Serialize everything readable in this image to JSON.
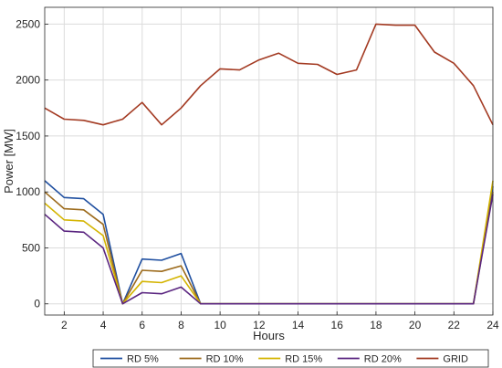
{
  "chart_data": {
    "type": "line",
    "title": "",
    "xlabel": "Hours",
    "ylabel": "Power [MW]",
    "xlim": [
      1,
      24
    ],
    "ylim": [
      -100,
      2650
    ],
    "xticks": [
      2,
      4,
      6,
      8,
      10,
      12,
      14,
      16,
      18,
      20,
      22,
      24
    ],
    "yticks": [
      0,
      500,
      1000,
      1500,
      2000,
      2500
    ],
    "grid": true,
    "legend_position": "bottom-outside",
    "x": [
      1,
      2,
      3,
      4,
      5,
      6,
      7,
      8,
      9,
      10,
      11,
      12,
      13,
      14,
      15,
      16,
      17,
      18,
      19,
      20,
      21,
      22,
      23,
      24
    ],
    "series": [
      {
        "name": "RD 5%",
        "color": "#1f4fa0",
        "values": [
          1100,
          950,
          940,
          800,
          0,
          400,
          390,
          450,
          0,
          0,
          0,
          0,
          0,
          0,
          0,
          0,
          0,
          0,
          0,
          0,
          0,
          0,
          0,
          1050
        ]
      },
      {
        "name": "RD 10%",
        "color": "#9c6a1b",
        "values": [
          1000,
          850,
          840,
          710,
          0,
          300,
          290,
          340,
          0,
          0,
          0,
          0,
          0,
          0,
          0,
          0,
          0,
          0,
          0,
          0,
          0,
          0,
          0,
          1000
        ]
      },
      {
        "name": "RD 15%",
        "color": "#d4b400",
        "values": [
          900,
          750,
          740,
          610,
          0,
          200,
          190,
          250,
          0,
          0,
          0,
          0,
          0,
          0,
          0,
          0,
          0,
          0,
          0,
          0,
          0,
          0,
          0,
          1100
        ]
      },
      {
        "name": "RD 20%",
        "color": "#5a2580",
        "values": [
          800,
          650,
          640,
          500,
          0,
          100,
          90,
          150,
          0,
          0,
          0,
          0,
          0,
          0,
          0,
          0,
          0,
          0,
          0,
          0,
          0,
          0,
          0,
          980
        ]
      },
      {
        "name": "GRID",
        "color": "#a33a22",
        "values": [
          1750,
          1650,
          1640,
          1600,
          1650,
          1800,
          1600,
          1750,
          1950,
          2100,
          2090,
          2180,
          2240,
          2150,
          2140,
          2050,
          2090,
          2500,
          2490,
          2490,
          2250,
          2150,
          1950,
          1600
        ]
      }
    ]
  }
}
